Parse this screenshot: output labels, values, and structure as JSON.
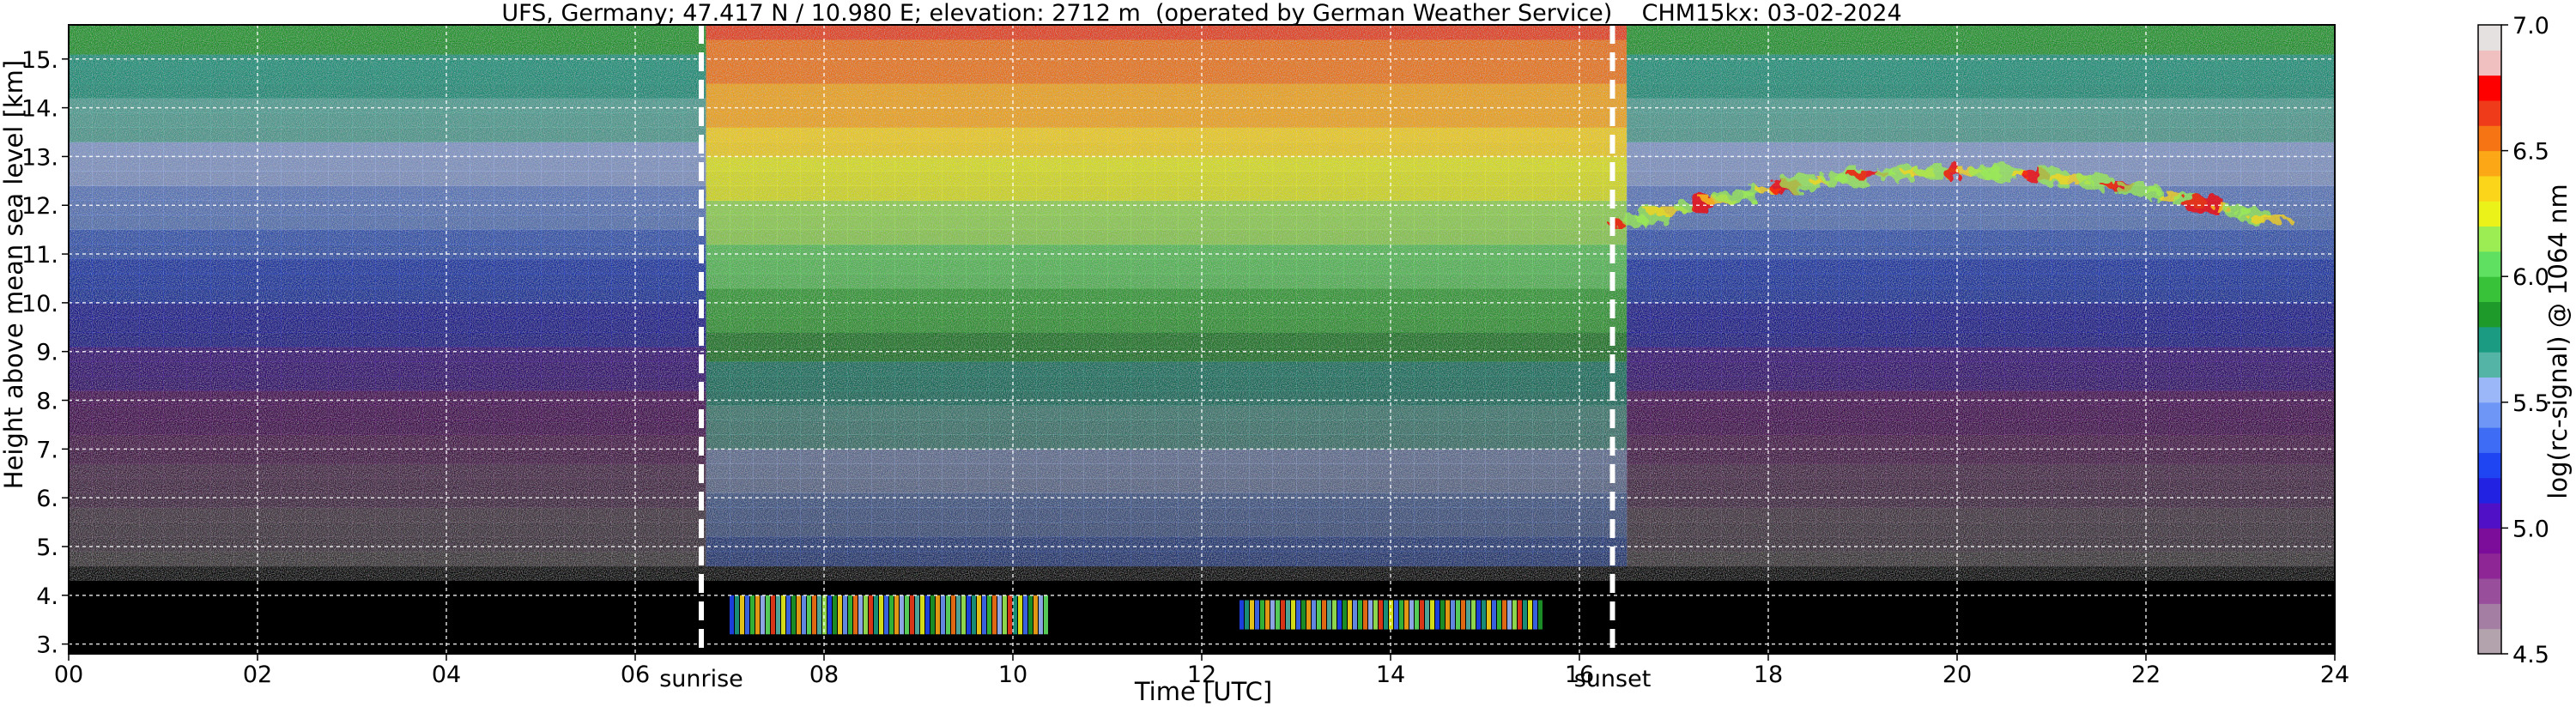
{
  "chart_data": [
    {
      "type": "heatmap",
      "title": "UFS, Germany; 47.417 N / 10.980 E; elevation: 2712 m  (operated by German Weather Service)    CHM15kx: 03-02-2024",
      "xlabel": "Time [UTC]",
      "ylabel": "Height above mean sea level [km]",
      "xlim": [
        0,
        24
      ],
      "ylim": [
        2.8,
        15.7
      ],
      "x_ticks": [
        "00",
        "02",
        "04",
        "06",
        "08",
        "10",
        "12",
        "14",
        "16",
        "18",
        "20",
        "22",
        "24"
      ],
      "y_ticks": [
        "3.",
        "4.",
        "5.",
        "6.",
        "7.",
        "8.",
        "9.",
        "10.",
        "11.",
        "12.",
        "13.",
        "14.",
        "15."
      ],
      "grid": true,
      "events": [
        {
          "label": "sunrise",
          "time": 6.7
        },
        {
          "label": "sunset",
          "time": 16.35
        }
      ],
      "features": [
        {
          "description": "low boundary-layer aerosol layer",
          "time_start": 7.0,
          "time_end": 10.4,
          "height_bottom": 3.2,
          "height_top": 4.0
        },
        {
          "description": "low boundary-layer aerosol layer",
          "time_start": 12.4,
          "time_end": 15.6,
          "height_bottom": 3.3,
          "height_top": 3.9
        },
        {
          "description": "high ice cloud",
          "time_start": 16.4,
          "time_end": 23.5,
          "height_bottom": 10.3,
          "height_top": 12.7
        }
      ]
    },
    {
      "type": "colorbar",
      "label": "log(rc-signal) @ 1064 nm",
      "range": [
        4.5,
        7.0
      ],
      "ticks": [
        "4.5",
        "5.0",
        "5.5",
        "6.0",
        "6.5",
        "7.0"
      ],
      "levels": [
        {
          "from": 4.5,
          "to": 4.6,
          "color": "#b3a3ad"
        },
        {
          "from": 4.6,
          "to": 4.7,
          "color": "#a57ea4"
        },
        {
          "from": 4.7,
          "to": 4.8,
          "color": "#994e9c"
        },
        {
          "from": 4.8,
          "to": 4.9,
          "color": "#8e2795"
        },
        {
          "from": 4.9,
          "to": 5.0,
          "color": "#7c0d9a"
        },
        {
          "from": 5.0,
          "to": 5.1,
          "color": "#4f10c6"
        },
        {
          "from": 5.1,
          "to": 5.2,
          "color": "#2222e2"
        },
        {
          "from": 5.2,
          "to": 5.3,
          "color": "#1f45f2"
        },
        {
          "from": 5.3,
          "to": 5.4,
          "color": "#3f6cf5"
        },
        {
          "from": 5.4,
          "to": 5.5,
          "color": "#6d96f7"
        },
        {
          "from": 5.5,
          "to": 5.6,
          "color": "#9cb7f8"
        },
        {
          "from": 5.6,
          "to": 5.7,
          "color": "#54b4a6"
        },
        {
          "from": 5.7,
          "to": 5.8,
          "color": "#1b9b81"
        },
        {
          "from": 5.8,
          "to": 5.9,
          "color": "#1e9a2a"
        },
        {
          "from": 5.9,
          "to": 6.0,
          "color": "#37c23a"
        },
        {
          "from": 6.0,
          "to": 6.1,
          "color": "#5fe060"
        },
        {
          "from": 6.1,
          "to": 6.2,
          "color": "#9cec54"
        },
        {
          "from": 6.2,
          "to": 6.3,
          "color": "#eaf21a"
        },
        {
          "from": 6.3,
          "to": 6.4,
          "color": "#fbd51a"
        },
        {
          "from": 6.4,
          "to": 6.5,
          "color": "#fba716"
        },
        {
          "from": 6.5,
          "to": 6.6,
          "color": "#f77415"
        },
        {
          "from": 6.6,
          "to": 6.7,
          "color": "#f03b1a"
        },
        {
          "from": 6.7,
          "to": 6.8,
          "color": "#fe0000"
        },
        {
          "from": 6.8,
          "to": 6.9,
          "color": "#f0c0c0"
        },
        {
          "from": 6.9,
          "to": 7.0,
          "color": "#e6e1e1"
        }
      ]
    }
  ]
}
